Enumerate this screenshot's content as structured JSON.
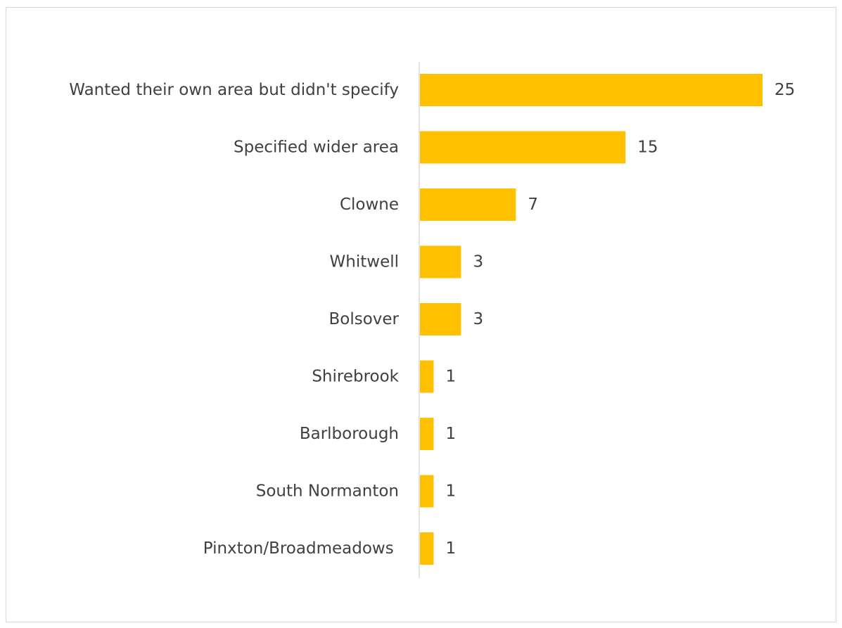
{
  "chart_data": {
    "type": "bar",
    "orientation": "horizontal",
    "title": "",
    "xlabel": "",
    "ylabel": "",
    "categories": [
      "Wanted their own area but didn't specify",
      "Specified wider area",
      "Clowne",
      "Whitwell",
      "Bolsover",
      "Shirebrook",
      "Barlborough",
      "South Normanton",
      "Pinxton/Broadmeadows "
    ],
    "values": [
      25,
      15,
      7,
      3,
      3,
      1,
      1,
      1,
      1
    ],
    "xlim": [
      0,
      25
    ],
    "grid": false,
    "legend": "none",
    "data_labels": true,
    "bar_color": "#FFC000",
    "axis_color": "#d9d9d9",
    "text_color": "#404040"
  }
}
